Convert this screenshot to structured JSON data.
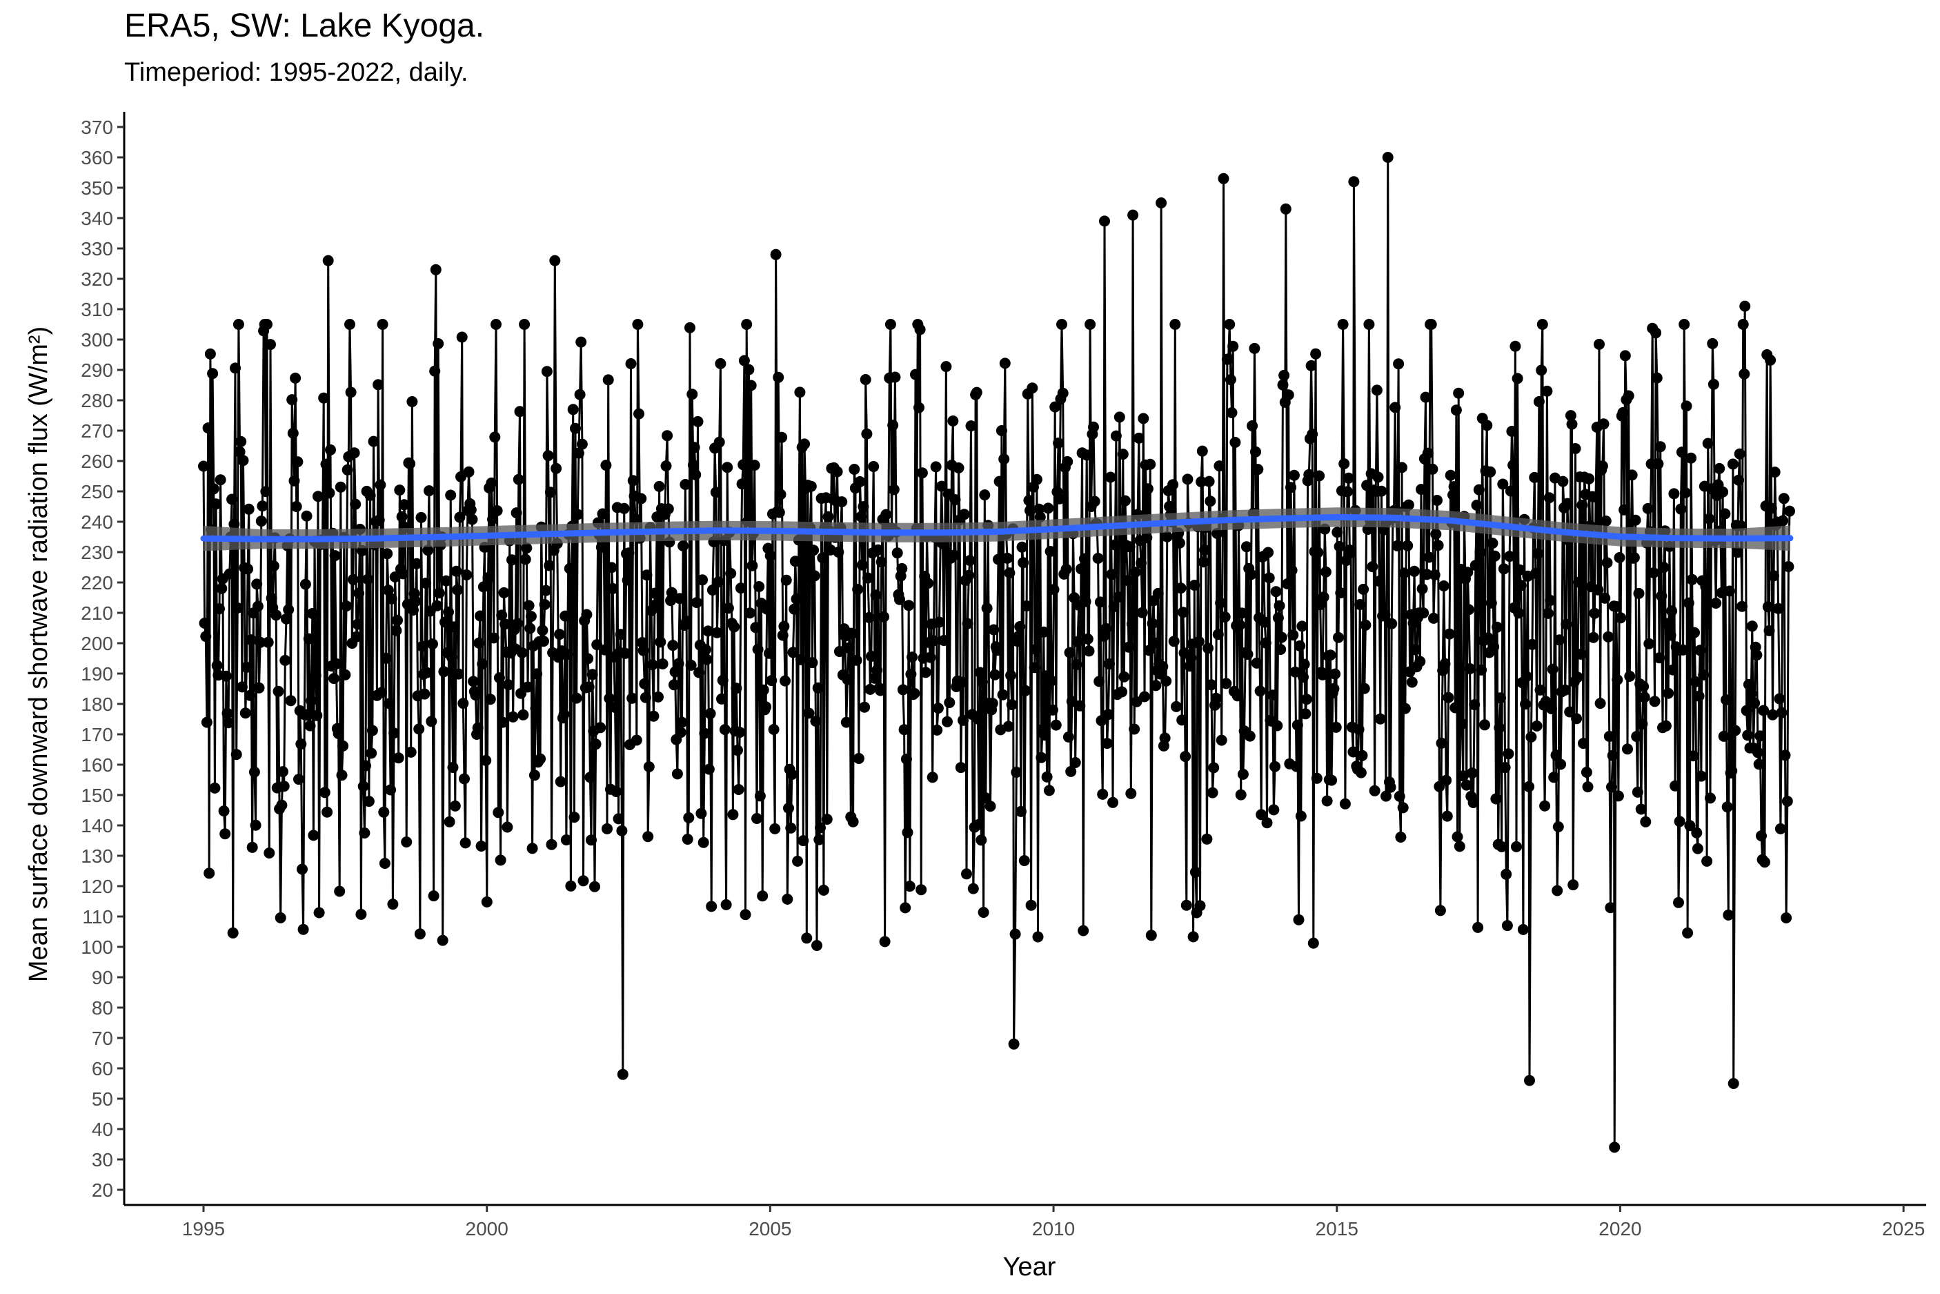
{
  "chart_data": {
    "type": "line",
    "title": "ERA5, SW: Lake Kyoga.",
    "subtitle": "Timeperiod: 1995-2022, daily.",
    "xlabel": "Year",
    "ylabel": "Mean surface downward shortwave radiation flux (W/m²)",
    "xlim": [
      1993.6,
      2025.4
    ],
    "ylim": [
      15,
      375
    ],
    "x_ticks": [
      1995,
      2000,
      2005,
      2010,
      2015,
      2020,
      2025
    ],
    "y_ticks": [
      20,
      30,
      40,
      50,
      60,
      70,
      80,
      90,
      100,
      110,
      120,
      130,
      140,
      150,
      160,
      170,
      180,
      190,
      200,
      210,
      220,
      230,
      240,
      250,
      260,
      270,
      280,
      290,
      300,
      310,
      320,
      330,
      340,
      350,
      360,
      370
    ],
    "grid": false,
    "series": [
      {
        "kind": "daily points and line",
        "color": "#000000",
        "x_range": [
          1995.0,
          2022.99
        ],
        "approx_daily_range": [
          33,
          360
        ],
        "notable_extremes": [
          {
            "x": 1997.2,
            "y": 326
          },
          {
            "x": 1999.1,
            "y": 323
          },
          {
            "x": 2001.2,
            "y": 326
          },
          {
            "x": 2002.4,
            "y": 58
          },
          {
            "x": 2005.1,
            "y": 328
          },
          {
            "x": 2009.3,
            "y": 68
          },
          {
            "x": 2010.9,
            "y": 339
          },
          {
            "x": 2011.4,
            "y": 341
          },
          {
            "x": 2011.9,
            "y": 345
          },
          {
            "x": 2013.0,
            "y": 353
          },
          {
            "x": 2014.1,
            "y": 343
          },
          {
            "x": 2015.3,
            "y": 352
          },
          {
            "x": 2015.9,
            "y": 360
          },
          {
            "x": 2018.4,
            "y": 56
          },
          {
            "x": 2019.9,
            "y": 34
          },
          {
            "x": 2022.0,
            "y": 55
          },
          {
            "x": 2022.2,
            "y": 311
          }
        ]
      },
      {
        "kind": "smooth trend (LOESS) with confidence band",
        "color": "#3366FF",
        "band_color": "#5a5a5a",
        "x": [
          1995,
          1996,
          1997,
          1998,
          1999,
          2000,
          2001,
          2002,
          2003,
          2004,
          2005,
          2006,
          2007,
          2008,
          2009,
          2010,
          2011,
          2012,
          2013,
          2014,
          2015,
          2016,
          2017,
          2018,
          2019,
          2020,
          2021,
          2022,
          2023
        ],
        "y": [
          234.5,
          234.3,
          234.3,
          234.5,
          234.9,
          235.4,
          235.9,
          236.4,
          236.8,
          237.1,
          237.0,
          236.7,
          236.4,
          236.4,
          236.7,
          237.6,
          238.6,
          239.6,
          240.5,
          241.1,
          241.5,
          241.3,
          240.4,
          238.5,
          236.6,
          235.1,
          234.6,
          234.5,
          234.6
        ],
        "band_halfwidth": 3.2
      }
    ]
  }
}
